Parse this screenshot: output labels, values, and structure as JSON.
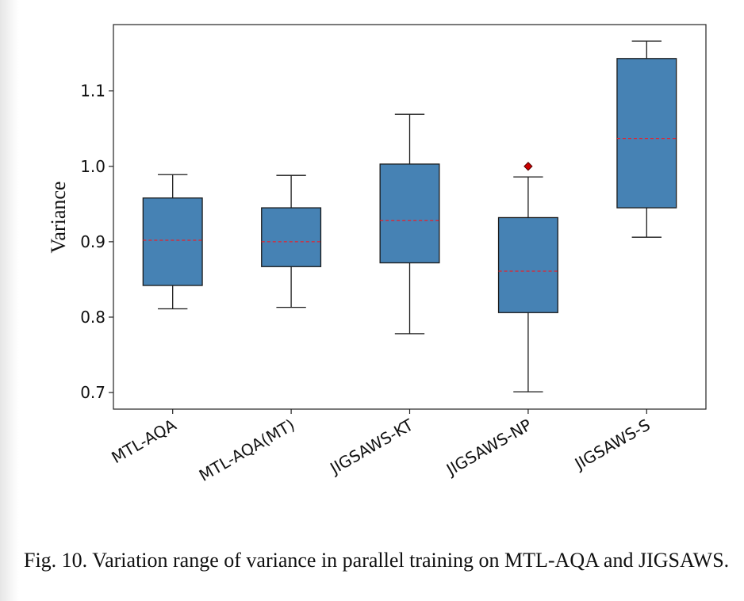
{
  "chart_data": {
    "type": "box",
    "categories": [
      "MTL-AQA",
      "MTL-AQA(MT)",
      "JIGSAWS-KT",
      "JIGSAWS-NP",
      "JIGSAWS-S"
    ],
    "boxes": [
      {
        "category": "MTL-AQA",
        "whisker_low": 0.811,
        "q1": 0.842,
        "median": 0.902,
        "q3": 0.958,
        "whisker_high": 0.989,
        "outliers": []
      },
      {
        "category": "MTL-AQA(MT)",
        "whisker_low": 0.813,
        "q1": 0.867,
        "median": 0.9,
        "q3": 0.945,
        "whisker_high": 0.988,
        "outliers": []
      },
      {
        "category": "JIGSAWS-KT",
        "whisker_low": 0.778,
        "q1": 0.872,
        "median": 0.928,
        "q3": 1.003,
        "whisker_high": 1.069,
        "outliers": []
      },
      {
        "category": "JIGSAWS-NP",
        "whisker_low": 0.701,
        "q1": 0.806,
        "median": 0.861,
        "q3": 0.932,
        "whisker_high": 0.986,
        "outliers": [
          1.0
        ]
      },
      {
        "category": "JIGSAWS-S",
        "whisker_low": 0.906,
        "q1": 0.945,
        "median": 1.037,
        "q3": 1.143,
        "whisker_high": 1.166,
        "outliers": []
      }
    ],
    "ylabel": "Variance",
    "xlabel": "",
    "ylim": [
      0.678,
      1.188
    ],
    "yticks": [
      0.7,
      0.8,
      0.9,
      1.0,
      1.1
    ],
    "ytick_labels": [
      "0.7",
      "0.8",
      "0.9",
      "1.0",
      "1.1"
    ],
    "grid": false,
    "colors": {
      "box_fill": "#4682b4",
      "box_edge": "#1a1a1a",
      "median_line": "#e8212b",
      "outlier": "#cc0000"
    }
  },
  "caption": "Fig. 10.  Variation range of variance in parallel training on MTL-AQA and JIGSAWS."
}
